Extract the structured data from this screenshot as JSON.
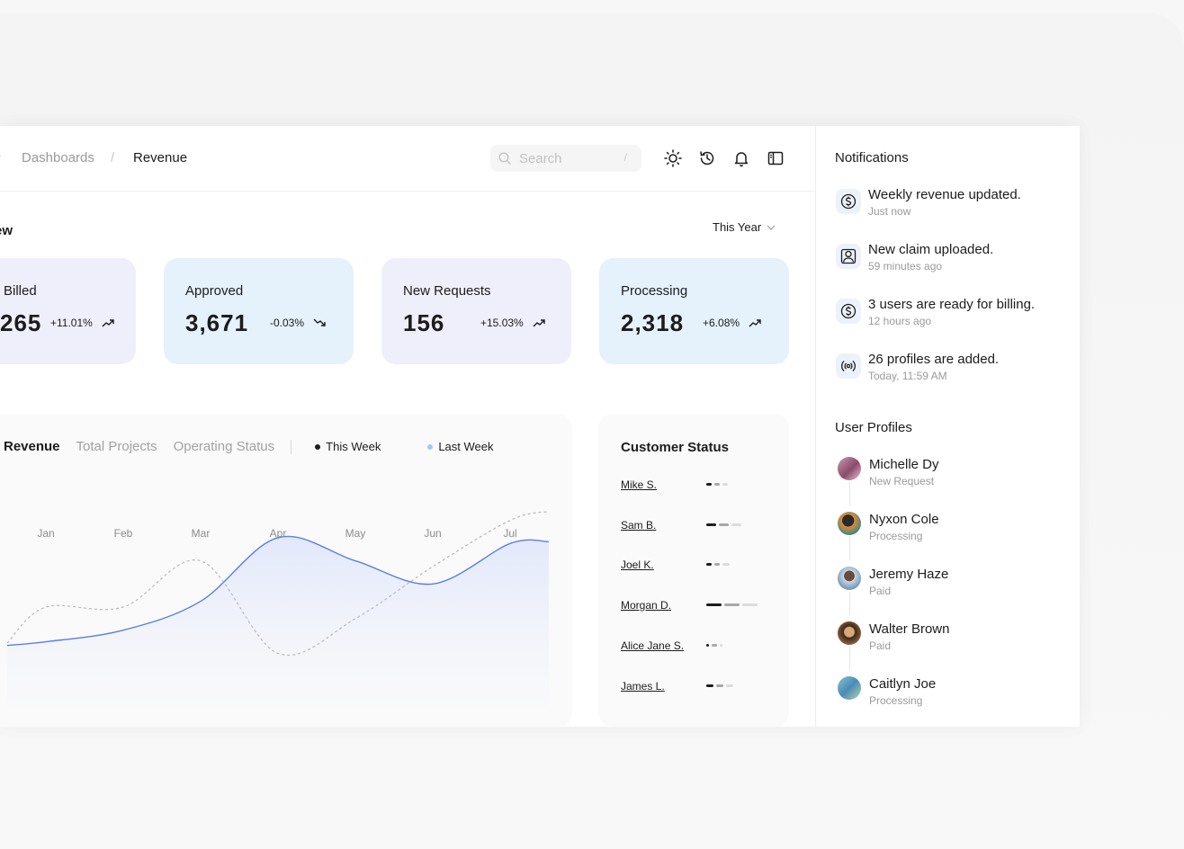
{
  "breadcrumb": {
    "parent": "Dashboards",
    "separator": "/",
    "current": "Revenue"
  },
  "search": {
    "placeholder": "Search",
    "shortcut": "/"
  },
  "toolbar_icons": [
    "sun-icon",
    "history-icon",
    "bell-icon",
    "sidebar-toggle-icon"
  ],
  "overview": {
    "title": "ew",
    "period": "This Year"
  },
  "stats": [
    {
      "label": "Billed",
      "value": "265",
      "change": "+11.01%",
      "trend": "up",
      "color": "#efeefb"
    },
    {
      "label": "Approved",
      "value": "3,671",
      "change": "-0.03%",
      "trend": "down",
      "color": "#e5f1fb"
    },
    {
      "label": "New Requests",
      "value": "156",
      "change": "+15.03%",
      "trend": "up",
      "color": "#efeefb"
    },
    {
      "label": "Processing",
      "value": "2,318",
      "change": "+6.08%",
      "trend": "up",
      "color": "#e5f1fb"
    }
  ],
  "chart": {
    "tabs": [
      "Revenue",
      "Total Projects",
      "Operating Status"
    ],
    "legend": [
      {
        "name": "This Week",
        "color": "#1c1c1c"
      },
      {
        "name": "Last Week",
        "color": "#a8c5f0"
      }
    ]
  },
  "chart_data": {
    "type": "line",
    "categories": [
      "Jan",
      "Feb",
      "Mar",
      "Apr",
      "May",
      "Jun",
      "Jul"
    ],
    "series": [
      {
        "name": "This Week",
        "values": [
          8,
          10,
          15,
          26,
          22,
          18,
          25
        ],
        "color": "#5b7fe0"
      },
      {
        "name": "Last Week",
        "values": [
          14,
          14,
          22,
          6,
          12,
          21,
          29
        ],
        "color": "#b8b8b8"
      }
    ],
    "ylim": [
      0,
      35
    ],
    "grid": false
  },
  "customer_status": {
    "title": "Customer Status",
    "rows": [
      {
        "name": "Mike S.",
        "bars": [
          0.2,
          0.2,
          0.2
        ]
      },
      {
        "name": "Sam B.",
        "bars": [
          0.4,
          0.4,
          0.4
        ]
      },
      {
        "name": "Joel K.",
        "bars": [
          0.2,
          0.2,
          0.3
        ]
      },
      {
        "name": "Morgan D.",
        "bars": [
          0.6,
          0.6,
          0.6
        ]
      },
      {
        "name": "Alice Jane S.",
        "bars": [
          0.1,
          0.2,
          0.1
        ]
      },
      {
        "name": "James L.",
        "bars": [
          0.3,
          0.3,
          0.3
        ]
      }
    ]
  },
  "notifications": {
    "title": "Notifications",
    "items": [
      {
        "icon": "dollar-icon",
        "text": "Weekly revenue updated.",
        "time": "Just now"
      },
      {
        "icon": "user-icon",
        "text": "New claim uploaded.",
        "time": "59 minutes ago"
      },
      {
        "icon": "dollar-icon",
        "text": "3 users are ready for billing.",
        "time": "12 hours ago"
      },
      {
        "icon": "broadcast-icon",
        "text": "26 profiles are added.",
        "time": "Today, 11:59 AM"
      }
    ]
  },
  "user_profiles": {
    "title": "User Profiles",
    "items": [
      {
        "name": "Michelle Dy",
        "status": "New Request",
        "color": "#a86a8a"
      },
      {
        "name": "Nyxon Cole",
        "status": "Processing",
        "color": "#4a8a7a"
      },
      {
        "name": "Jeremy Haze",
        "status": "Paid",
        "color": "#7a9ab8"
      },
      {
        "name": "Walter Brown",
        "status": "Paid",
        "color": "#8a5a3a"
      },
      {
        "name": "Caitlyn Joe",
        "status": "Processing",
        "color": "#6aa8b8"
      }
    ]
  }
}
